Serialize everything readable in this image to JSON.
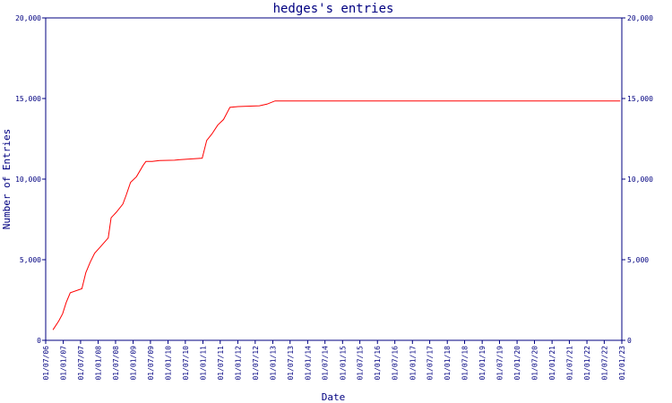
{
  "chart_data": {
    "type": "line",
    "title": "hedges's entries",
    "x_label": "Date",
    "y_label": "Number of Entries",
    "x": [
      "15/09/06",
      "15/11/06",
      "25/12/06",
      "01/02/07",
      "15/03/07",
      "15/07/07",
      "25/08/07",
      "10/10/07",
      "25/11/07",
      "25/01/08",
      "15/04/08",
      "15/05/08",
      "10/07/08",
      "15/09/08",
      "20/10/08",
      "05/12/08",
      "05/02/09",
      "15/04/09",
      "15/05/09",
      "20/07/09",
      "05/10/09",
      "10/03/10",
      "25/04/10",
      "25/08/10",
      "25/12/10",
      "10/02/11",
      "05/04/11",
      "05/06/11",
      "05/08/11",
      "10/10/11",
      "05/01/12",
      "15/08/12",
      "01/11/12",
      "25/01/13",
      "15/12/22"
    ],
    "series": [
      {
        "name": "hedges",
        "color": "#ff0000",
        "values": [
          650,
          1200,
          1650,
          2350,
          2950,
          3200,
          4200,
          4850,
          5400,
          5800,
          6350,
          7600,
          7950,
          8450,
          9000,
          9800,
          10150,
          10850,
          11100,
          11100,
          11150,
          11170,
          11200,
          11250,
          11300,
          12400,
          12800,
          13350,
          13700,
          14450,
          14500,
          14550,
          14650,
          14850,
          14850
        ]
      }
    ],
    "xlim": [
      "01/07/06",
      "01/01/23"
    ],
    "xticks": [
      "01/07/06",
      "01/01/07",
      "01/07/07",
      "01/01/08",
      "01/07/08",
      "01/01/09",
      "01/07/09",
      "01/01/10",
      "01/07/10",
      "01/01/11",
      "01/07/11",
      "01/01/12",
      "01/07/12",
      "01/01/13",
      "01/07/13",
      "01/01/14",
      "01/07/14",
      "01/01/15",
      "01/07/15",
      "01/01/16",
      "01/07/16",
      "01/01/17",
      "01/07/17",
      "01/01/18",
      "01/07/18",
      "01/01/19",
      "01/07/19",
      "01/01/20",
      "01/07/20",
      "01/01/21",
      "01/07/21",
      "01/01/22",
      "01/07/22",
      "01/01/23"
    ],
    "ylim": [
      0,
      20000
    ],
    "yticks": [
      0,
      {
        "value": 5000,
        "label": "5,000"
      },
      {
        "value": 10000,
        "label": "10,000"
      },
      {
        "value": 15000,
        "label": "15,000"
      },
      {
        "value": 20000,
        "label": "20,000"
      }
    ],
    "y2lim": [
      0,
      20000
    ],
    "y2ticks": [
      0,
      {
        "value": 5000,
        "label": "5,000"
      },
      {
        "value": 10000,
        "label": "10,000"
      },
      {
        "value": 15000,
        "label": "15,000"
      },
      {
        "value": 20000,
        "label": "20,000"
      }
    ],
    "axis_color": "#000080"
  }
}
